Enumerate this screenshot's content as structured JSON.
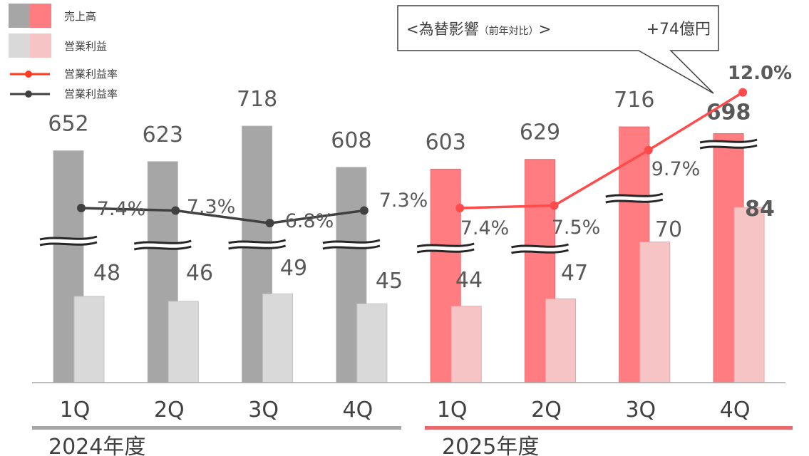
{
  "legend": [
    {
      "label": "売上高",
      "kind": "bar-pair",
      "colors": [
        "#a6a6a6",
        "#ff7c80"
      ]
    },
    {
      "label": "営業利益",
      "kind": "bar-pair",
      "colors": [
        "#d9d9d9",
        "#f7c4c6"
      ]
    },
    {
      "label": "営業利益率",
      "kind": "line",
      "color": "#ff3b1f"
    },
    {
      "label": "営業利益率",
      "kind": "line",
      "color": "#404040"
    }
  ],
  "callout": {
    "title": "<為替影響",
    "note": "（前年対比）",
    "close": ">",
    "value": "+74億円"
  },
  "chart_data": {
    "type": "bar",
    "categories": [
      "1Q",
      "2Q",
      "3Q",
      "4Q",
      "1Q",
      "2Q",
      "3Q",
      "4Q"
    ],
    "groups": [
      {
        "label": "2024年度",
        "from": 0,
        "to": 3,
        "color": "#a6a6a6"
      },
      {
        "label": "2025年度",
        "from": 4,
        "to": 7,
        "color": "#e8686d"
      }
    ],
    "series": [
      {
        "name": "売上高",
        "values": [
          652,
          623,
          718,
          608,
          603,
          629,
          716,
          698
        ],
        "colors": [
          "#a6a6a6",
          "#a6a6a6",
          "#a6a6a6",
          "#a6a6a6",
          "#ff7c80",
          "#ff7c80",
          "#ff7c80",
          "#ff7c80"
        ]
      },
      {
        "name": "営業利益",
        "values": [
          48,
          46,
          49,
          45,
          44,
          47,
          70,
          84
        ],
        "colors": [
          "#d9d9d9",
          "#d9d9d9",
          "#d9d9d9",
          "#d9d9d9",
          "#f7c4c6",
          "#f7c4c6",
          "#f7c4c6",
          "#f7c4c6"
        ]
      },
      {
        "name": "営業利益率",
        "values": [
          7.4,
          7.3,
          6.8,
          7.3,
          7.4,
          7.5,
          9.7,
          12.0
        ],
        "labels": [
          "7.4%",
          "7.3%",
          "6.8%",
          "7.3%",
          "7.4%",
          "7.5%",
          "9.7%",
          "12.0%"
        ],
        "colors": [
          "#404040",
          "#ff4b4b"
        ]
      }
    ],
    "axis_break": true,
    "grid": false
  }
}
